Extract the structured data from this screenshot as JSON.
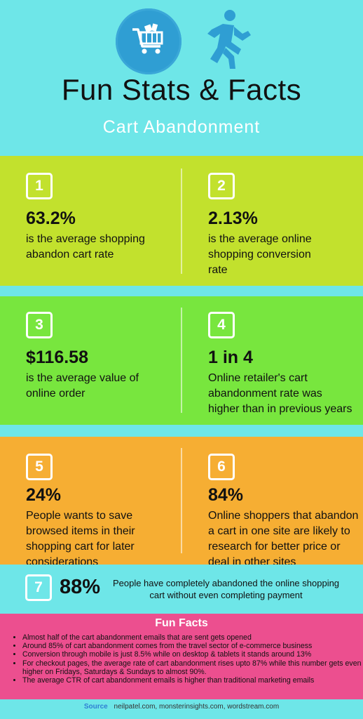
{
  "header": {
    "title": "Fun Stats & Facts",
    "subtitle": "Cart Abandonment",
    "icons": [
      "shopping-cart-icon",
      "running-person-icon"
    ],
    "colors": {
      "background": "#6ee6e8",
      "circle": "#2f9ed3",
      "runner": "#2f9ed3"
    }
  },
  "stats": [
    {
      "number": "1",
      "value": "63.2%",
      "lines": [
        "is the average shopping",
        "abandon cart rate"
      ]
    },
    {
      "number": "2",
      "value": "2.13%",
      "lines": [
        "is the average online",
        "shopping conversion",
        "rate"
      ]
    },
    {
      "number": "3",
      "value": "$116.58",
      "lines": [
        "is the average value of",
        "online order"
      ]
    },
    {
      "number": "4",
      "value": "1 in 4",
      "lines": [
        "Online retailer's cart",
        "abandonment rate was",
        "higher than in previous years"
      ]
    },
    {
      "number": "5",
      "value": "24%",
      "lines": [
        "People wants to save",
        "browsed items in their",
        "shopping cart for later",
        "considerations"
      ]
    },
    {
      "number": "6",
      "value": "84%",
      "lines": [
        "Online shoppers that abandon",
        "a cart in one site are likely to",
        "research for better price or",
        "deal in other sites"
      ]
    }
  ],
  "stat7": {
    "number": "7",
    "value": "88%",
    "lines": [
      "People have completely abandoned the online shopping",
      "cart without even completing payment"
    ]
  },
  "fun_facts": {
    "title": "Fun Facts",
    "items": [
      "Almost half of the cart abandonment emails that are sent gets opened",
      "Around 85% of cart abandonment comes from the travel sector of e-commerce business",
      "Conversion through mobile is just 8.5% while on desktop & tablets it stands around 13%",
      "For checkout pages, the average rate of cart abandonment rises upto 87% while this number gets even higher on Fridays, Saturdays & Sundays to almost 90%.",
      "The average CTR of cart abandonment emails is higher than traditional marketing emails"
    ]
  },
  "source": {
    "label": "Source",
    "text": "neilpatel.com, monsterinsights.com, wordstream.com"
  },
  "colors": {
    "band1": "#c2e12d",
    "band2": "#78e63e",
    "band3": "#f6ae33",
    "facts": "#ec4f8f"
  }
}
